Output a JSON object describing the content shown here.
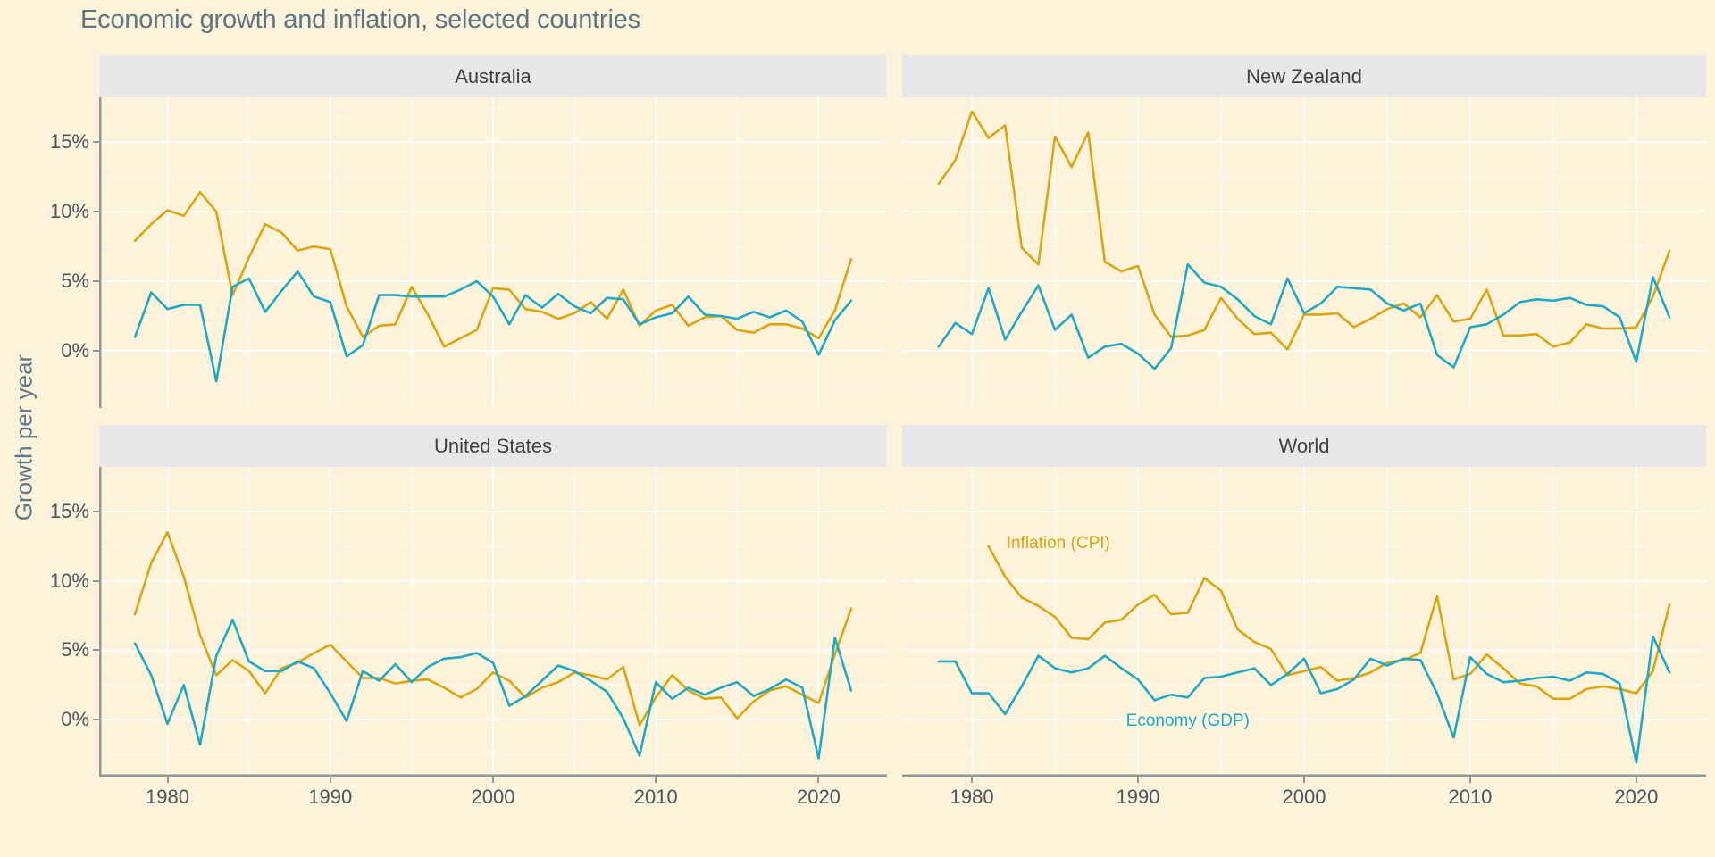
{
  "title": "Economic growth and inflation, selected countries",
  "y_axis_title": "Growth per year",
  "colors": {
    "background": "#fcf3da",
    "strip": "#e8e8ea",
    "inflation": "#dca50f",
    "gdp": "#21a8c7",
    "grid_major": "#ffffff",
    "axis_line": "#8f9a98",
    "tick_text": "#4b5560",
    "title_text": "#5b7684"
  },
  "chart_data": {
    "type": "line",
    "title": "Economic growth and inflation, selected countries",
    "ylabel": "Growth per year",
    "xlabel": "",
    "grid": "on",
    "legend_position": "annotated-in-world-panel",
    "x_domain": [
      1975.8,
      2024.2
    ],
    "y_domain": [
      -4.11,
      18.22
    ],
    "y_ticks": [
      {
        "value": 0,
        "label": "0%"
      },
      {
        "value": 5,
        "label": "5%"
      },
      {
        "value": 10,
        "label": "10%"
      },
      {
        "value": 15,
        "label": "15%"
      }
    ],
    "x_ticks": [
      {
        "year": 1980,
        "label": "1980"
      },
      {
        "year": 1990,
        "label": "1990"
      },
      {
        "year": 2000,
        "label": "2000"
      },
      {
        "year": 2010,
        "label": "2010"
      },
      {
        "year": 2020,
        "label": "2020"
      }
    ],
    "years": [
      1978,
      1979,
      1980,
      1981,
      1982,
      1983,
      1984,
      1985,
      1986,
      1987,
      1988,
      1989,
      1990,
      1991,
      1992,
      1993,
      1994,
      1995,
      1996,
      1997,
      1998,
      1999,
      2000,
      2001,
      2002,
      2003,
      2004,
      2005,
      2006,
      2007,
      2008,
      2009,
      2010,
      2011,
      2012,
      2013,
      2014,
      2015,
      2016,
      2017,
      2018,
      2019,
      2020,
      2021,
      2022
    ],
    "facets": [
      {
        "name": "Australia",
        "series": [
          {
            "name": "Inflation (CPI)",
            "key": "inflation",
            "values": [
              7.9,
              9.1,
              10.1,
              9.7,
              11.4,
              10.0,
              4.0,
              6.7,
              9.1,
              8.5,
              7.2,
              7.5,
              7.3,
              3.2,
              1.0,
              1.8,
              1.9,
              4.6,
              2.6,
              0.3,
              0.9,
              1.5,
              4.5,
              4.4,
              3.0,
              2.8,
              2.3,
              2.7,
              3.5,
              2.3,
              4.4,
              1.8,
              2.9,
              3.3,
              1.8,
              2.4,
              2.5,
              1.5,
              1.3,
              1.9,
              1.9,
              1.6,
              0.9,
              2.9,
              6.6
            ]
          },
          {
            "name": "Economy (GDP)",
            "key": "gdp",
            "values": [
              1.0,
              4.2,
              3.0,
              3.3,
              3.3,
              -2.2,
              4.6,
              5.2,
              2.8,
              4.3,
              5.7,
              3.9,
              3.5,
              -0.4,
              0.4,
              4.0,
              4.0,
              3.9,
              3.9,
              3.9,
              4.4,
              5.0,
              3.9,
              1.9,
              4.0,
              3.1,
              4.1,
              3.2,
              2.7,
              3.8,
              3.7,
              1.9,
              2.4,
              2.7,
              3.9,
              2.6,
              2.5,
              2.3,
              2.8,
              2.4,
              2.9,
              2.1,
              -0.3,
              2.2,
              3.6
            ]
          }
        ]
      },
      {
        "name": "New Zealand",
        "series": [
          {
            "name": "Inflation (CPI)",
            "key": "inflation",
            "values": [
              12.0,
              13.7,
              17.2,
              15.3,
              16.2,
              7.4,
              6.2,
              15.4,
              13.2,
              15.7,
              6.4,
              5.7,
              6.1,
              2.6,
              1.0,
              1.1,
              1.5,
              3.8,
              2.3,
              1.2,
              1.3,
              0.1,
              2.6,
              2.6,
              2.7,
              1.7,
              2.3,
              3.0,
              3.4,
              2.4,
              4.0,
              2.1,
              2.3,
              4.4,
              1.1,
              1.1,
              1.2,
              0.3,
              0.6,
              1.9,
              1.6,
              1.6,
              1.7,
              3.9,
              7.2
            ]
          },
          {
            "name": "Economy (GDP)",
            "key": "gdp",
            "values": [
              0.3,
              2.0,
              1.2,
              4.5,
              0.8,
              2.8,
              4.7,
              1.5,
              2.6,
              -0.5,
              0.3,
              0.5,
              -0.2,
              -1.3,
              0.2,
              6.2,
              4.9,
              4.6,
              3.7,
              2.5,
              1.9,
              5.2,
              2.7,
              3.4,
              4.6,
              4.5,
              4.4,
              3.4,
              2.9,
              3.4,
              -0.3,
              -1.2,
              1.7,
              1.9,
              2.6,
              3.5,
              3.7,
              3.6,
              3.8,
              3.3,
              3.2,
              2.4,
              -0.8,
              5.3,
              2.4
            ]
          }
        ]
      },
      {
        "name": "United States",
        "series": [
          {
            "name": "Inflation (CPI)",
            "key": "inflation",
            "values": [
              7.6,
              11.3,
              13.5,
              10.3,
              6.1,
              3.2,
              4.3,
              3.5,
              1.9,
              3.7,
              4.1,
              4.8,
              5.4,
              4.2,
              3.0,
              3.0,
              2.6,
              2.8,
              2.9,
              2.3,
              1.6,
              2.2,
              3.4,
              2.8,
              1.6,
              2.3,
              2.7,
              3.4,
              3.2,
              2.9,
              3.8,
              -0.4,
              1.6,
              3.2,
              2.1,
              1.5,
              1.6,
              0.1,
              1.3,
              2.1,
              2.4,
              1.8,
              1.2,
              4.7,
              8.0
            ]
          },
          {
            "name": "Economy (GDP)",
            "key": "gdp",
            "values": [
              5.5,
              3.2,
              -0.3,
              2.5,
              -1.8,
              4.6,
              7.2,
              4.2,
              3.5,
              3.5,
              4.2,
              3.7,
              1.9,
              -0.1,
              3.5,
              2.8,
              4.0,
              2.7,
              3.8,
              4.4,
              4.5,
              4.8,
              4.1,
              1.0,
              1.7,
              2.8,
              3.9,
              3.5,
              2.8,
              2.0,
              0.1,
              -2.6,
              2.7,
              1.5,
              2.3,
              1.8,
              2.3,
              2.7,
              1.7,
              2.2,
              2.9,
              2.3,
              -2.8,
              5.9,
              2.1
            ]
          }
        ]
      },
      {
        "name": "World",
        "series": [
          {
            "name": "Inflation (CPI)",
            "key": "inflation",
            "values": [
              null,
              null,
              null,
              12.5,
              10.3,
              8.8,
              8.2,
              7.4,
              5.9,
              5.8,
              7.0,
              7.2,
              8.3,
              9.0,
              7.6,
              7.7,
              10.2,
              9.3,
              6.5,
              5.6,
              5.1,
              3.2,
              3.5,
              3.8,
              2.8,
              3.0,
              3.4,
              4.1,
              4.3,
              4.8,
              8.9,
              2.9,
              3.3,
              4.7,
              3.7,
              2.6,
              2.4,
              1.5,
              1.5,
              2.2,
              2.4,
              2.2,
              1.9,
              3.5,
              8.3
            ]
          },
          {
            "name": "Economy (GDP)",
            "key": "gdp",
            "values": [
              4.2,
              4.2,
              1.9,
              1.9,
              0.4,
              2.4,
              4.6,
              3.7,
              3.4,
              3.7,
              4.6,
              3.7,
              2.9,
              1.4,
              1.8,
              1.6,
              3.0,
              3.1,
              3.4,
              3.7,
              2.5,
              3.3,
              4.4,
              1.9,
              2.2,
              2.9,
              4.4,
              3.9,
              4.4,
              4.3,
              1.9,
              -1.3,
              4.5,
              3.3,
              2.7,
              2.8,
              3.0,
              3.1,
              2.8,
              3.4,
              3.3,
              2.6,
              -3.1,
              6.0,
              3.4
            ]
          }
        ],
        "annotations": [
          {
            "text": "Inflation (CPI)",
            "key": "inflation",
            "x": 1985.2,
            "y": 12.8
          },
          {
            "text": "Economy (GDP)",
            "key": "gdp",
            "x": 1993.0,
            "y": 0.0
          }
        ]
      }
    ]
  }
}
